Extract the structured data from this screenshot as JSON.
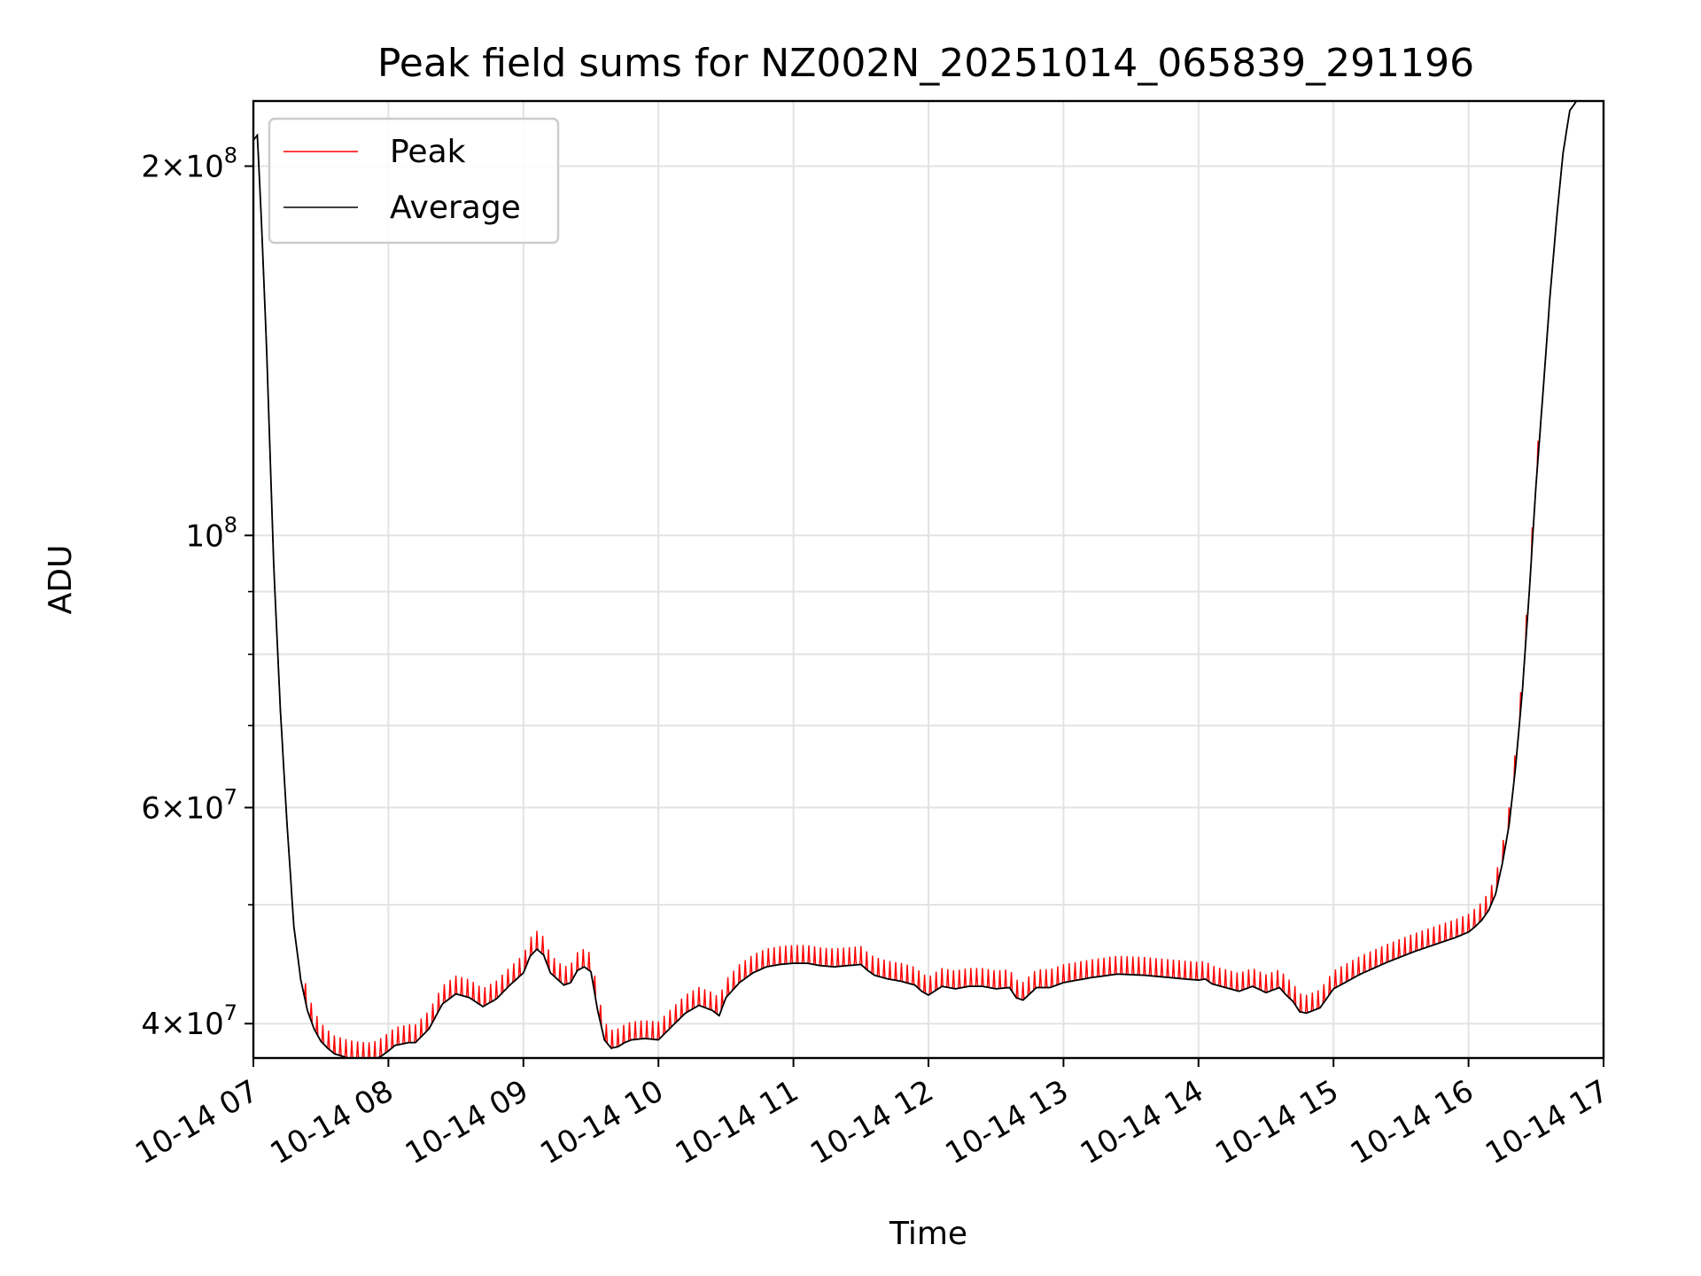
{
  "chart_data": {
    "type": "line",
    "title": "Peak field sums for NZ002N_20251014_065839_291196",
    "xlabel": "Time",
    "ylabel": "ADU",
    "yscale": "log",
    "xlim": [
      7.0,
      17.0
    ],
    "ylim": [
      37500000,
      226000000
    ],
    "grid": true,
    "legend_position": "upper-left",
    "x_ticks": [
      {
        "value": 7,
        "label": "10-14 07"
      },
      {
        "value": 8,
        "label": "10-14 08"
      },
      {
        "value": 9,
        "label": "10-14 09"
      },
      {
        "value": 10,
        "label": "10-14 10"
      },
      {
        "value": 11,
        "label": "10-14 11"
      },
      {
        "value": 12,
        "label": "10-14 12"
      },
      {
        "value": 13,
        "label": "10-14 13"
      },
      {
        "value": 14,
        "label": "10-14 14"
      },
      {
        "value": 15,
        "label": "10-14 15"
      },
      {
        "value": 16,
        "label": "10-14 16"
      },
      {
        "value": 17,
        "label": "10-14 17"
      }
    ],
    "y_ticks": [
      {
        "value": 40000000,
        "base": "4",
        "exp": "7"
      },
      {
        "value": 60000000,
        "base": "6",
        "exp": "7"
      },
      {
        "value": 100000000,
        "base": "",
        "exp": "8"
      },
      {
        "value": 200000000,
        "base": "2",
        "exp": "8"
      }
    ],
    "y_minor_ticks": [
      50000000,
      70000000,
      80000000,
      90000000
    ],
    "series": [
      {
        "name": "Peak",
        "color": "#ff0000",
        "spike_ratio": 0.035
      },
      {
        "name": "Average",
        "color": "#000000",
        "x": [
          7.0,
          7.03,
          7.06,
          7.1,
          7.15,
          7.2,
          7.25,
          7.3,
          7.35,
          7.4,
          7.45,
          7.5,
          7.55,
          7.6,
          7.7,
          7.75,
          7.8,
          7.85,
          7.9,
          7.95,
          8.0,
          8.05,
          8.1,
          8.15,
          8.2,
          8.3,
          8.4,
          8.5,
          8.6,
          8.7,
          8.8,
          8.9,
          9.0,
          9.05,
          9.1,
          9.15,
          9.2,
          9.3,
          9.35,
          9.4,
          9.45,
          9.5,
          9.55,
          9.6,
          9.65,
          9.7,
          9.75,
          9.8,
          9.9,
          10.0,
          10.1,
          10.2,
          10.3,
          10.4,
          10.45,
          10.5,
          10.6,
          10.7,
          10.8,
          10.9,
          11.0,
          11.1,
          11.2,
          11.3,
          11.4,
          11.5,
          11.55,
          11.6,
          11.7,
          11.8,
          11.9,
          11.95,
          12.0,
          12.1,
          12.2,
          12.3,
          12.4,
          12.5,
          12.6,
          12.65,
          12.7,
          12.8,
          12.9,
          13.0,
          13.2,
          13.4,
          13.6,
          13.8,
          13.9,
          14.0,
          14.05,
          14.1,
          14.2,
          14.3,
          14.4,
          14.5,
          14.6,
          14.65,
          14.7,
          14.75,
          14.8,
          14.85,
          14.9,
          15.0,
          15.2,
          15.4,
          15.6,
          15.8,
          15.9,
          16.0,
          16.05,
          16.1,
          16.15,
          16.2,
          16.25,
          16.3,
          16.35,
          16.4,
          16.45,
          16.5,
          16.55,
          16.6,
          16.65,
          16.7,
          16.75,
          16.8,
          16.85,
          16.9,
          17.0
        ],
        "y": [
          210000000,
          212000000,
          180000000,
          140000000,
          95000000,
          72000000,
          58000000,
          48000000,
          43500000,
          41000000,
          39600000,
          38700000,
          38200000,
          37800000,
          37500000,
          37400000,
          37350000,
          37300000,
          37400000,
          37650000,
          38000000,
          38400000,
          38500000,
          38600000,
          38600000,
          39600000,
          41500000,
          42300000,
          42000000,
          41300000,
          41900000,
          43000000,
          44000000,
          45400000,
          46000000,
          45500000,
          44000000,
          43000000,
          43200000,
          44200000,
          44500000,
          44100000,
          41000000,
          38800000,
          38200000,
          38300000,
          38600000,
          38800000,
          38900000,
          38800000,
          39800000,
          40800000,
          41400000,
          41000000,
          40600000,
          42000000,
          43200000,
          44000000,
          44500000,
          44700000,
          44800000,
          44800000,
          44600000,
          44500000,
          44600000,
          44700000,
          44200000,
          43800000,
          43500000,
          43300000,
          43000000,
          42500000,
          42200000,
          42900000,
          42700000,
          42900000,
          42900000,
          42700000,
          42800000,
          42000000,
          41800000,
          42800000,
          42800000,
          43200000,
          43600000,
          43900000,
          43800000,
          43600000,
          43500000,
          43400000,
          43500000,
          43100000,
          42800000,
          42500000,
          42900000,
          42400000,
          42800000,
          42200000,
          41700000,
          40900000,
          40800000,
          41000000,
          41200000,
          42700000,
          43900000,
          44900000,
          45800000,
          46600000,
          47000000,
          47500000,
          48000000,
          48600000,
          49500000,
          51000000,
          54000000,
          58000000,
          65000000,
          75000000,
          90000000,
          110000000,
          130000000,
          155000000,
          180000000,
          205000000,
          222000000,
          226000000,
          226000000,
          226000000,
          226000000
        ]
      }
    ]
  }
}
